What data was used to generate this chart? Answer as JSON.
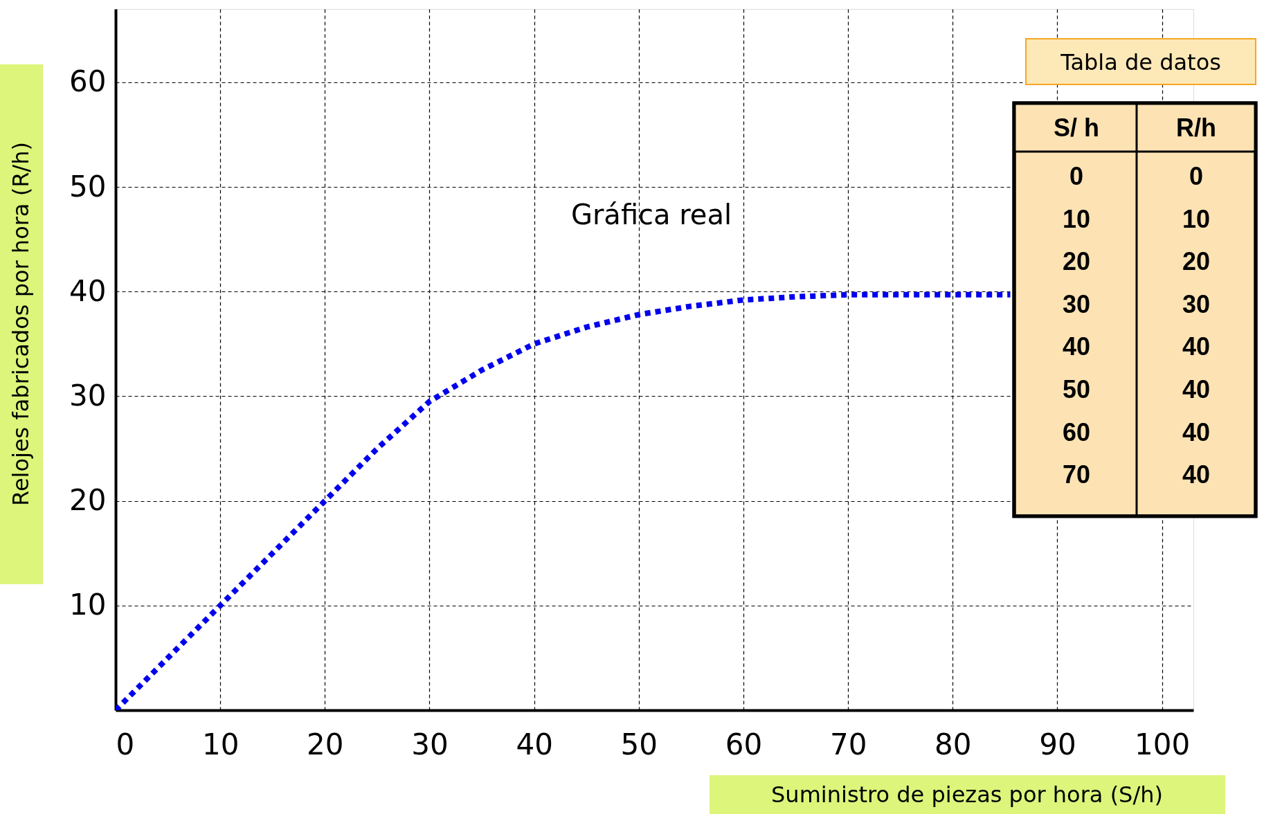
{
  "chart_data": {
    "type": "line",
    "xlabel": "Suministro de piezas por hora (S/h)",
    "ylabel": "Relojes fabricados por hora (R/h)",
    "x": [
      0,
      5,
      10,
      15,
      20,
      25,
      30,
      35,
      40,
      45,
      50,
      55,
      60,
      65,
      70,
      75,
      80,
      85.5
    ],
    "series": [
      {
        "color": "#0000ee",
        "values": [
          0,
          5,
          10,
          15,
          20,
          25,
          29.5,
          32.5,
          35,
          36.6,
          37.8,
          38.6,
          39.2,
          39.5,
          39.7,
          39.7,
          39.7,
          39.7
        ]
      }
    ],
    "xlim": [
      0,
      103
    ],
    "ylim": [
      0,
      67
    ],
    "xticks": [
      0,
      10,
      20,
      30,
      40,
      50,
      60,
      70,
      80,
      90,
      100
    ],
    "yticks": [
      10,
      20,
      30,
      40,
      50,
      60
    ],
    "grid": true,
    "line_style": "dotted",
    "marker": "none",
    "annotations": [
      "Gráfica real",
      "Tabla de datos",
      "S/ h",
      "R/h",
      "0",
      "0",
      "10",
      "10",
      "20",
      "20",
      "30",
      "30",
      "40",
      "40",
      "50",
      "40",
      "60",
      "40",
      "70",
      "40"
    ]
  }
}
